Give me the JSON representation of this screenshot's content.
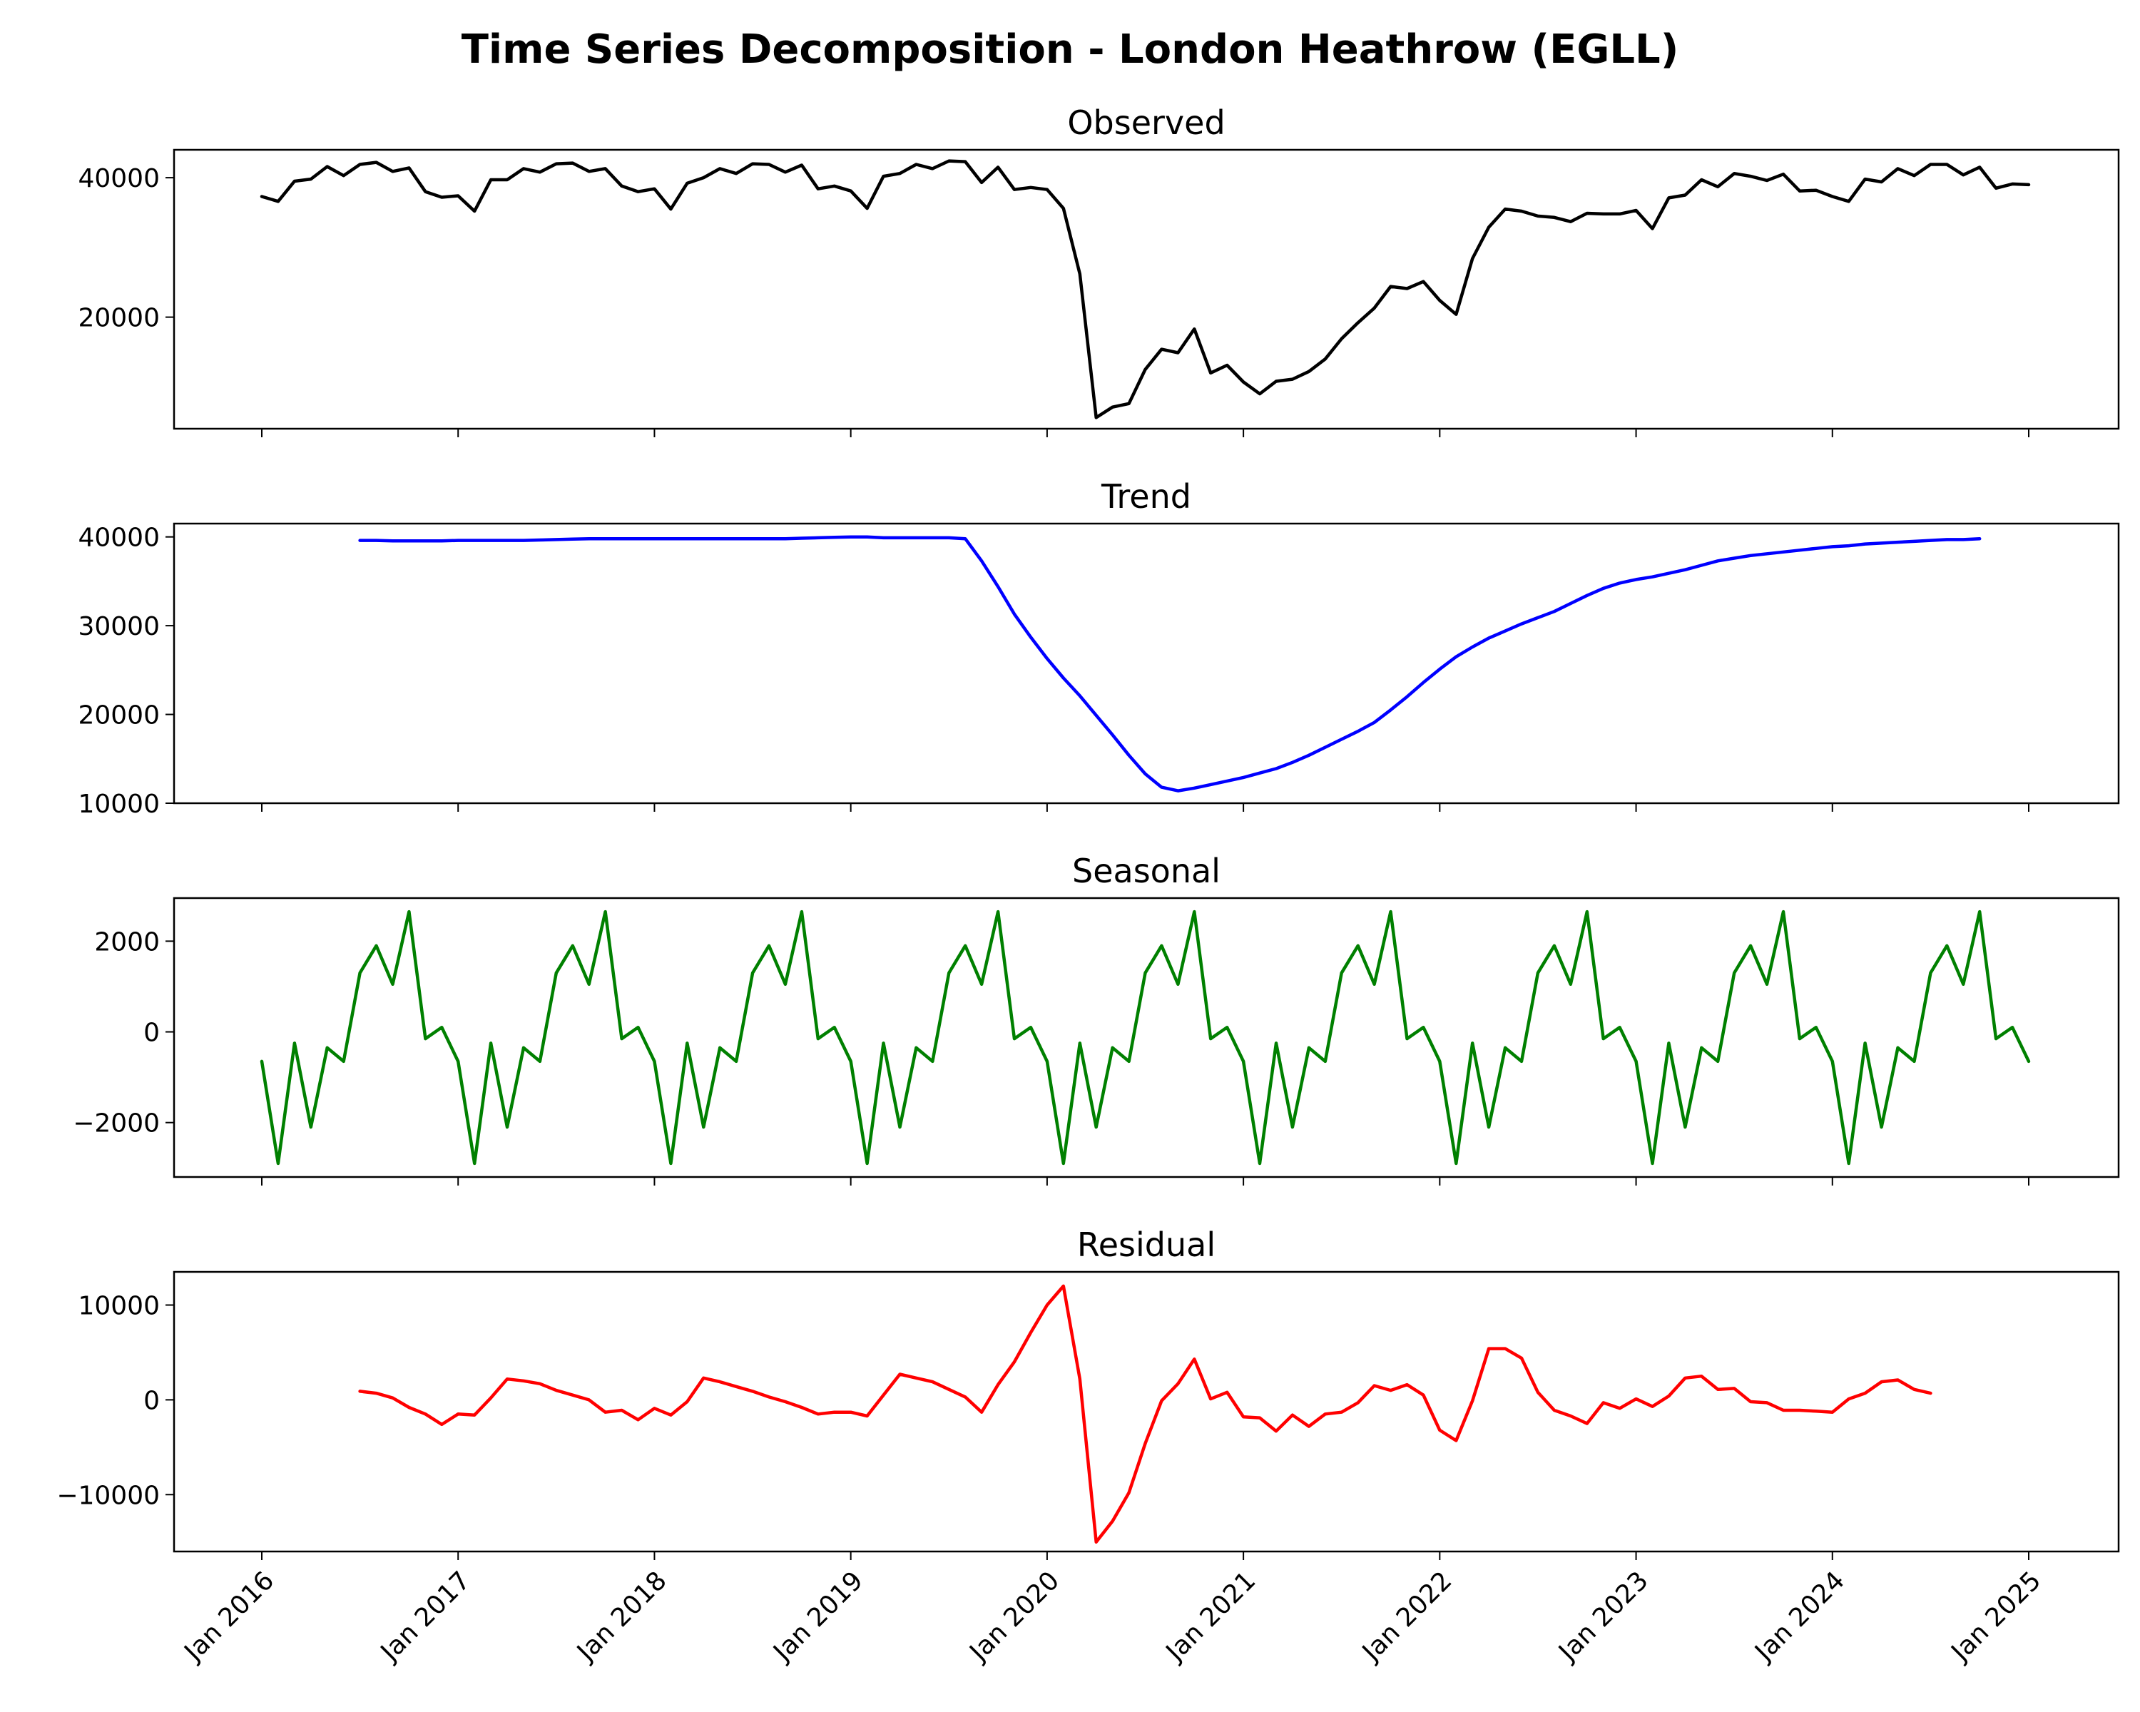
{
  "suptitle": "Time Series Decomposition - London Heathrow (EGLL)",
  "x_tick_labels": [
    "Jan 2016",
    "Jan 2017",
    "Jan 2018",
    "Jan 2019",
    "Jan 2020",
    "Jan 2021",
    "Jan 2022",
    "Jan 2023",
    "Jan 2024",
    "Jan 2025"
  ],
  "colors": {
    "observed": "#000000",
    "trend": "#0000ff",
    "seasonal": "#008000",
    "residual": "#ff0000"
  },
  "chart_data": [
    {
      "type": "line",
      "title": "Observed",
      "xlabel": "",
      "ylabel": "",
      "x_start": "Jan 2016",
      "frequency": "monthly",
      "ylim": [
        4000,
        44000
      ],
      "yticks": [
        20000,
        40000
      ],
      "y_tick_labels": [
        "20000",
        "40000"
      ],
      "values": [
        37300,
        36600,
        39500,
        39800,
        41600,
        40300,
        41900,
        42200,
        40900,
        41400,
        38000,
        37200,
        37400,
        35200,
        39700,
        39700,
        41300,
        40800,
        42000,
        42100,
        40900,
        41300,
        38800,
        38000,
        38400,
        35500,
        39200,
        40000,
        41300,
        40600,
        42000,
        41900,
        40800,
        41800,
        38400,
        38800,
        38100,
        35600,
        40200,
        40600,
        41900,
        41300,
        42400,
        42300,
        39300,
        41500,
        38300,
        38600,
        38300,
        35600,
        26200,
        5600,
        7100,
        7600,
        12500,
        15400,
        14900,
        18300,
        12000,
        13100,
        10700,
        9000,
        10800,
        11100,
        12200,
        14000,
        16900,
        19200,
        21300,
        24400,
        24100,
        25100,
        22400,
        20400,
        28400,
        32900,
        35500,
        35200,
        34500,
        34300,
        33700,
        34900,
        34800,
        34800,
        35300,
        32700,
        37100,
        37500,
        39700,
        38700,
        40600,
        40200,
        39600,
        40500,
        38100,
        38200,
        37300,
        36600,
        39800,
        39400,
        41300,
        40300,
        41900,
        41900,
        40400,
        41500,
        38500,
        39100,
        39000
      ]
    },
    {
      "type": "line",
      "title": "Trend",
      "xlabel": "",
      "ylabel": "",
      "x_start": "Jul 2016",
      "frequency": "monthly",
      "ylim": [
        10000,
        41500
      ],
      "yticks": [
        10000,
        20000,
        30000,
        40000
      ],
      "y_tick_labels": [
        "10000",
        "20000",
        "30000",
        "40000"
      ],
      "values": [
        39600,
        39600,
        39550,
        39550,
        39550,
        39550,
        39600,
        39600,
        39600,
        39600,
        39600,
        39650,
        39700,
        39750,
        39800,
        39800,
        39800,
        39800,
        39800,
        39800,
        39800,
        39800,
        39800,
        39800,
        39800,
        39800,
        39800,
        39850,
        39900,
        39950,
        40000,
        40000,
        39900,
        39900,
        39900,
        39900,
        39900,
        39800,
        37300,
        34400,
        31300,
        28700,
        26300,
        24100,
        22100,
        19900,
        17700,
        15400,
        13300,
        11800,
        11400,
        11700,
        12100,
        12500,
        12900,
        13400,
        13900,
        14600,
        15400,
        16300,
        17200,
        18100,
        19100,
        20500,
        22000,
        23600,
        25100,
        26500,
        27600,
        28600,
        29400,
        30200,
        30900,
        31600,
        32500,
        33400,
        34200,
        34800,
        35200,
        35500,
        35900,
        36300,
        36800,
        37300,
        37600,
        37900,
        38100,
        38300,
        38500,
        38700,
        38900,
        39000,
        39200,
        39300,
        39400,
        39500,
        39600,
        39700,
        39700,
        39800
      ]
    },
    {
      "type": "line",
      "title": "Seasonal",
      "xlabel": "",
      "ylabel": "",
      "x_start": "Jan 2016",
      "frequency": "monthly",
      "ylim": [
        -3200,
        2950
      ],
      "yticks": [
        -2000,
        0,
        2000
      ],
      "y_tick_labels": [
        "−2000",
        "0",
        "2000"
      ],
      "values": [
        -650,
        -2900,
        -250,
        -2100,
        -350,
        -650,
        1300,
        1900,
        1050,
        2650,
        -150,
        100,
        -650,
        -2900,
        -250,
        -2100,
        -350,
        -650,
        1300,
        1900,
        1050,
        2650,
        -150,
        100,
        -650,
        -2900,
        -250,
        -2100,
        -350,
        -650,
        1300,
        1900,
        1050,
        2650,
        -150,
        100,
        -650,
        -2900,
        -250,
        -2100,
        -350,
        -650,
        1300,
        1900,
        1050,
        2650,
        -150,
        100,
        -650,
        -2900,
        -250,
        -2100,
        -350,
        -650,
        1300,
        1900,
        1050,
        2650,
        -150,
        100,
        -650,
        -2900,
        -250,
        -2100,
        -350,
        -650,
        1300,
        1900,
        1050,
        2650,
        -150,
        100,
        -650,
        -2900,
        -250,
        -2100,
        -350,
        -650,
        1300,
        1900,
        1050,
        2650,
        -150,
        100,
        -650,
        -2900,
        -250,
        -2100,
        -350,
        -650,
        1300,
        1900,
        1050,
        2650,
        -150,
        100,
        -650,
        -2900,
        -250,
        -2100,
        -350,
        -650,
        1300,
        1900,
        1050,
        2650,
        -150,
        100,
        -650
      ]
    },
    {
      "type": "line",
      "title": "Residual",
      "xlabel": "",
      "ylabel": "",
      "x_start": "Jul 2016",
      "frequency": "monthly",
      "ylim": [
        -16000,
        13500
      ],
      "yticks": [
        -10000,
        0,
        10000
      ],
      "y_tick_labels": [
        "−10000",
        "0",
        "10000"
      ],
      "values": [
        900,
        700,
        200,
        -800,
        -1500,
        -2600,
        -1500,
        -1600,
        200,
        2200,
        2000,
        1700,
        1000,
        500,
        0,
        -1300,
        -1100,
        -2100,
        -900,
        -1600,
        -200,
        2300,
        1900,
        1400,
        900,
        300,
        -200,
        -800,
        -1500,
        -1300,
        -1300,
        -1700,
        500,
        2700,
        2300,
        1900,
        1100,
        300,
        -1300,
        1600,
        4000,
        7100,
        10000,
        12000,
        2200,
        -15000,
        -12800,
        -9800,
        -4600,
        -100,
        1700,
        4300,
        100,
        800,
        -1800,
        -1900,
        -3300,
        -1600,
        -2800,
        -1500,
        -1300,
        -300,
        1500,
        1000,
        1600,
        500,
        -3200,
        -4300,
        -100,
        5400,
        5400,
        4400,
        800,
        -1100,
        -1700,
        -2500,
        -300,
        -900,
        100,
        -700,
        400,
        2300,
        2500,
        1100,
        1200,
        -200,
        -300,
        -1100,
        -1100,
        -1200,
        -1300,
        100,
        700,
        1900,
        2100,
        1100,
        700
      ]
    }
  ]
}
